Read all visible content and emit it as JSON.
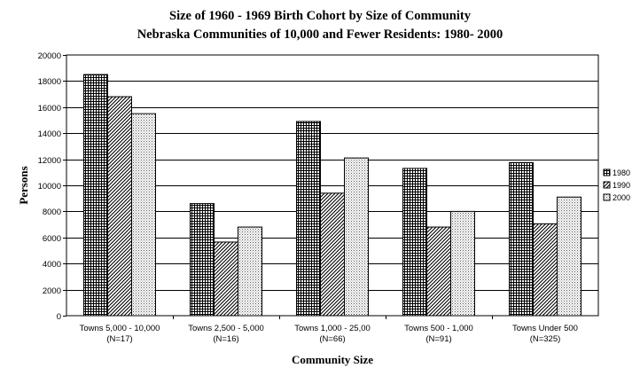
{
  "chart_data": {
    "type": "bar",
    "title": "Size of 1960 - 1969 Birth Cohort by Size of Community",
    "subtitle": "Nebraska Communities of 10,000 and Fewer Residents: 1980- 2000",
    "xlabel": "Community Size",
    "ylabel": "Persons",
    "ylim": [
      0,
      20000
    ],
    "yticks": [
      0,
      2000,
      4000,
      6000,
      8000,
      10000,
      12000,
      14000,
      16000,
      18000,
      20000
    ],
    "grid": true,
    "legend_position": "right",
    "categories": [
      [
        "Towns 5,000 - 10,000",
        "(N=17)"
      ],
      [
        "Towns 2,500 - 5,000",
        "(N=16)"
      ],
      [
        "Towns 1,000 - 25,00",
        "(N=66)"
      ],
      [
        "Towns 500 - 1,000",
        "(N=91)"
      ],
      [
        "Towns Under 500",
        "(N=325)"
      ]
    ],
    "series": [
      {
        "name": "1980",
        "pattern": "grid",
        "values": [
          18500,
          8600,
          14900,
          11300,
          11750
        ]
      },
      {
        "name": "1990",
        "pattern": "diagonal",
        "values": [
          16800,
          5650,
          9400,
          6800,
          7050
        ]
      },
      {
        "name": "2000",
        "pattern": "dots",
        "values": [
          15500,
          6800,
          12100,
          8000,
          9100
        ]
      }
    ]
  }
}
